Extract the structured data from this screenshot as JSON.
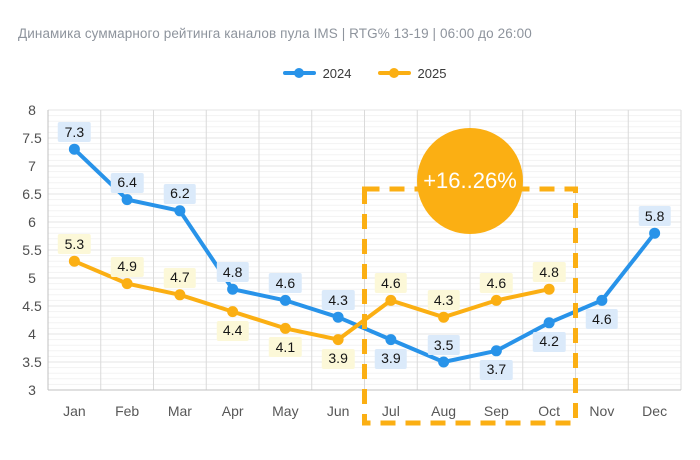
{
  "page": {
    "title": "Динамика суммарного рейтинга каналов пула IMS | RTG% 13-19 | 06:00 до 26:00"
  },
  "chart_data": {
    "type": "line",
    "title": "Динамика суммарного рейтинга каналов пула IMS | RTG% 13-19 | 06:00 до 26:00",
    "categories": [
      "Jan",
      "Feb",
      "Mar",
      "Apr",
      "May",
      "Jun",
      "Jul",
      "Aug",
      "Sep",
      "Oct",
      "Nov",
      "Dec"
    ],
    "ylim": [
      3,
      8
    ],
    "ytick_step": 0.5,
    "yminor_step": 0.1,
    "grid": true,
    "legend_position": "top-center",
    "series": [
      {
        "name": "2024",
        "color": "#2893e9",
        "label_bg": "#dbeafa",
        "values": [
          7.3,
          6.4,
          6.2,
          4.8,
          4.6,
          4.3,
          3.9,
          3.5,
          3.7,
          4.2,
          4.6,
          5.8
        ],
        "label_pos": [
          "above",
          "above",
          "above",
          "above",
          "above",
          "above",
          "below",
          "above",
          "below",
          "below",
          "below",
          "above"
        ]
      },
      {
        "name": "2025",
        "color": "#fbaf13",
        "label_bg": "#fcf8d8",
        "values": [
          5.3,
          4.9,
          4.7,
          4.4,
          4.1,
          3.9,
          4.6,
          4.3,
          4.6,
          4.8,
          null,
          null
        ],
        "label_pos": [
          "above",
          "above",
          "above",
          "below",
          "below",
          "below",
          "above",
          "above",
          "above",
          "above",
          null,
          null
        ]
      }
    ],
    "annotation": {
      "badge_text": "+16..26%",
      "badge_color": "#fbaf13",
      "highlight_range": [
        "Jul",
        "Oct"
      ]
    }
  }
}
